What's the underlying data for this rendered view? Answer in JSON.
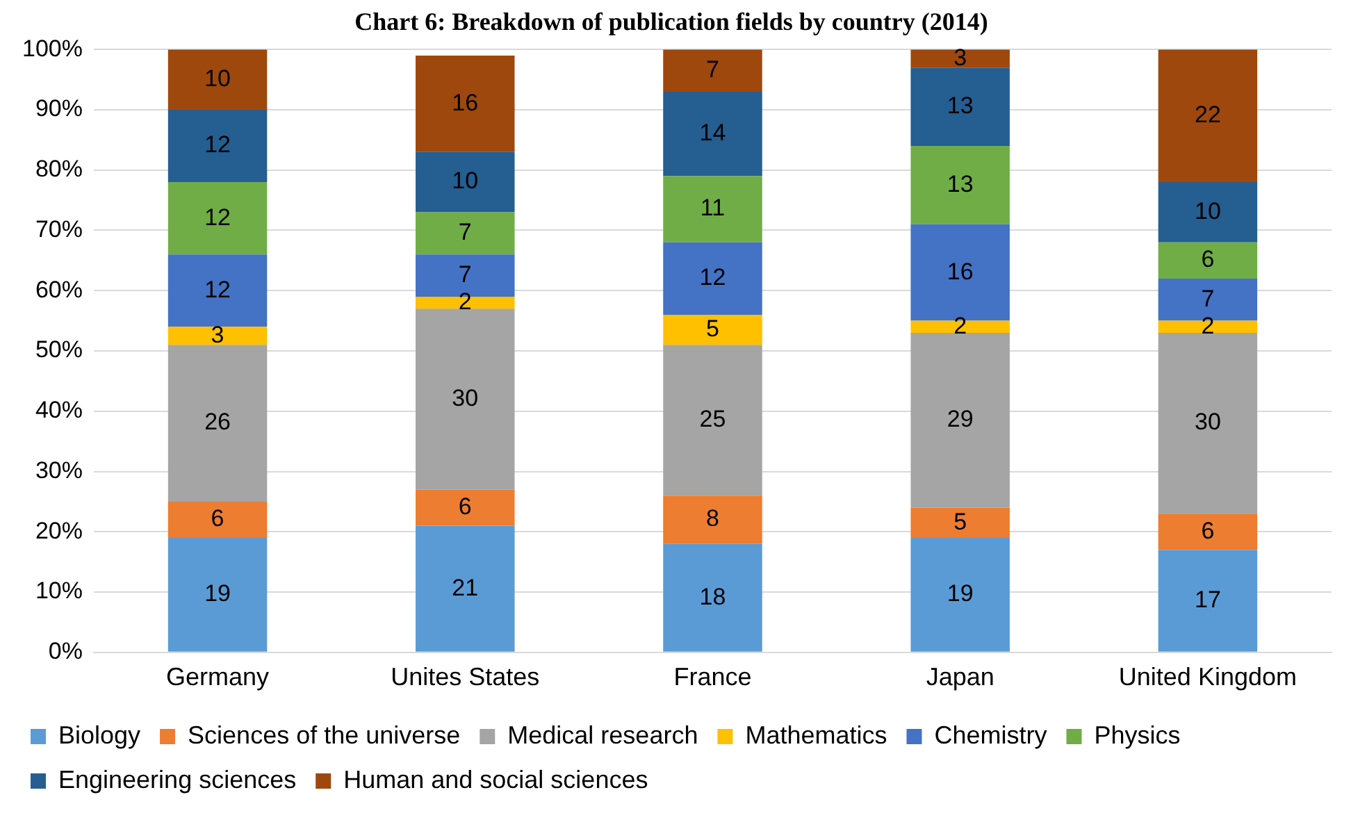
{
  "chart_data": {
    "type": "bar",
    "title": "Chart 6: Breakdown of publication fields by country (2014)",
    "stacked": true,
    "data_labels": true,
    "grid": "y",
    "legend": "bottom",
    "categories": [
      "Germany",
      "Unites States",
      "France",
      "Japan",
      "United Kingdom"
    ],
    "ylim": [
      0,
      100
    ],
    "yticks": [
      {
        "value": 0,
        "label": "0%"
      },
      {
        "value": 10,
        "label": "10%"
      },
      {
        "value": 20,
        "label": "20%"
      },
      {
        "value": 30,
        "label": "30%"
      },
      {
        "value": 40,
        "label": "40%"
      },
      {
        "value": 50,
        "label": "50%"
      },
      {
        "value": 60,
        "label": "60%"
      },
      {
        "value": 70,
        "label": "70%"
      },
      {
        "value": 80,
        "label": "80%"
      },
      {
        "value": 90,
        "label": "90%"
      },
      {
        "value": 100,
        "label": "100%"
      }
    ],
    "series": [
      {
        "name": "Biology",
        "color": "#5b9bd5",
        "values": [
          19,
          21,
          18,
          19,
          17
        ]
      },
      {
        "name": "Sciences of the universe",
        "color": "#ed7d31",
        "values": [
          6,
          6,
          8,
          5,
          6
        ]
      },
      {
        "name": "Medical research",
        "color": "#a5a5a5",
        "values": [
          26,
          30,
          25,
          29,
          30
        ]
      },
      {
        "name": "Mathematics",
        "color": "#ffc000",
        "values": [
          3,
          2,
          5,
          2,
          2
        ]
      },
      {
        "name": "Chemistry",
        "color": "#4472c4",
        "values": [
          12,
          7,
          12,
          16,
          7
        ]
      },
      {
        "name": "Physics",
        "color": "#70ad47",
        "values": [
          12,
          7,
          11,
          13,
          6
        ]
      },
      {
        "name": "Engineering sciences",
        "color": "#255e91",
        "values": [
          12,
          10,
          14,
          13,
          10
        ]
      },
      {
        "name": "Human and social sciences",
        "color": "#9e480e",
        "values": [
          10,
          16,
          7,
          3,
          22
        ]
      }
    ]
  }
}
